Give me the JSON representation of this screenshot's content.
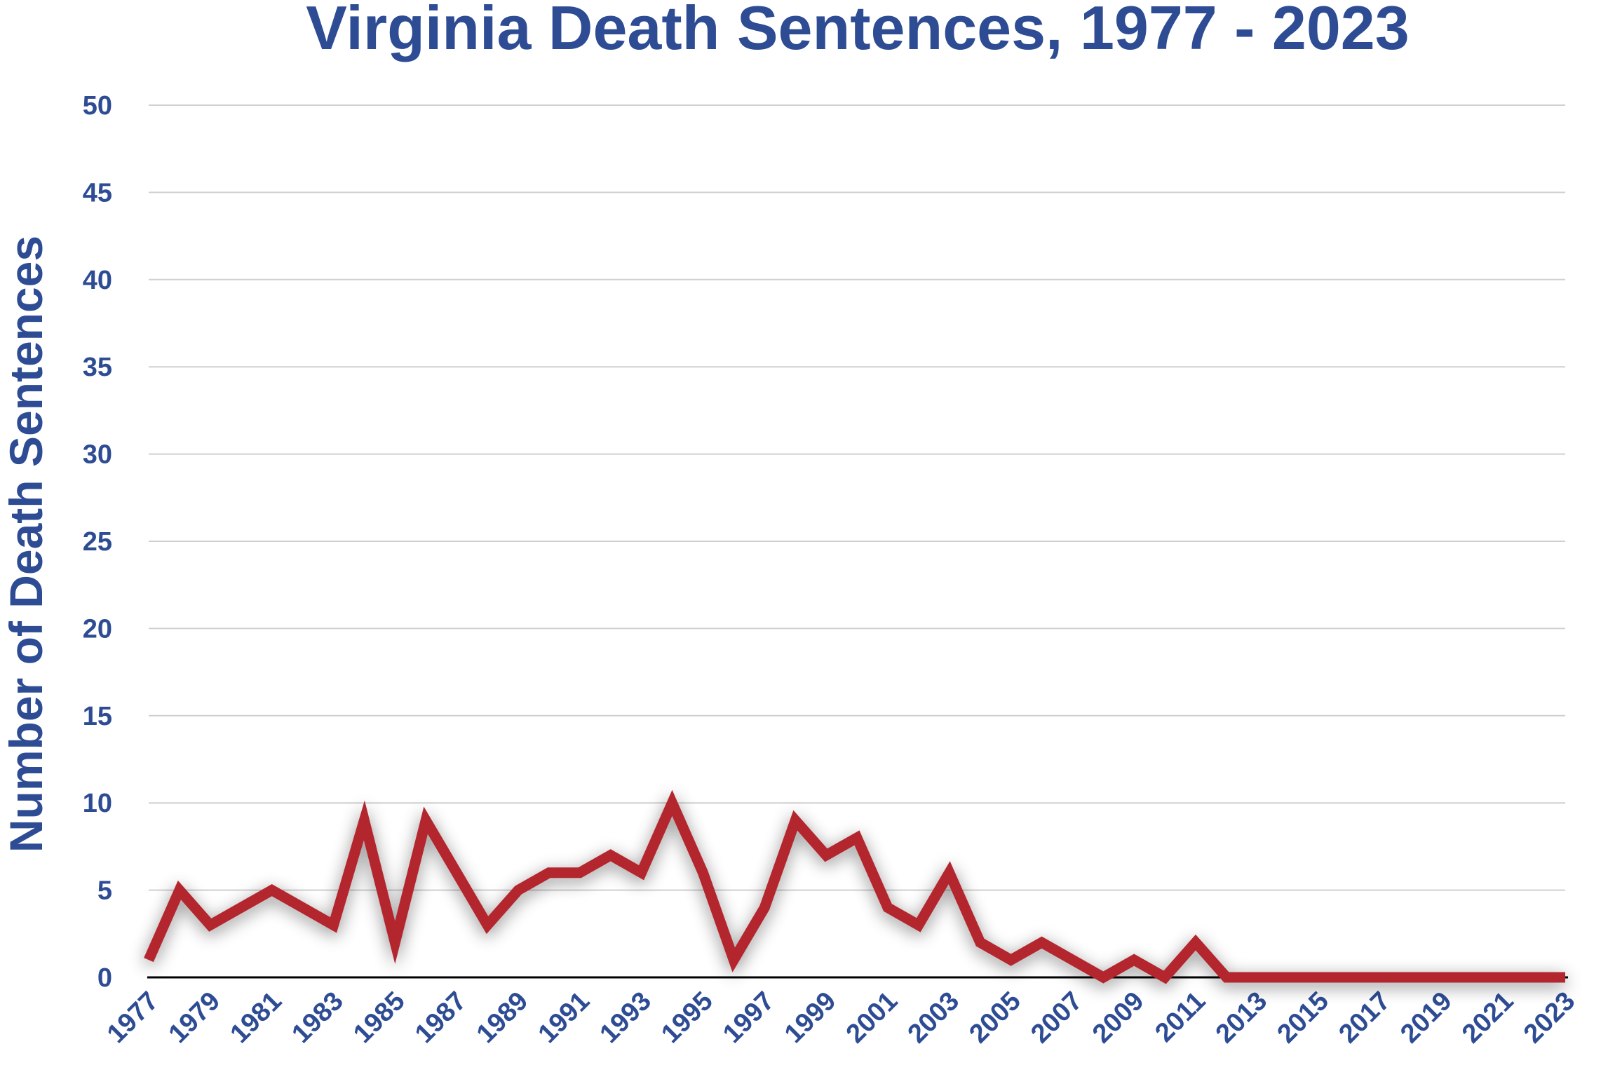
{
  "chart_data": {
    "type": "line",
    "title": "Virginia Death Sentences, 1977 - 2023",
    "xlabel": "",
    "ylabel": "Number of Death Sentences",
    "ylim": [
      0,
      50
    ],
    "yticks": [
      "0",
      "5",
      "10",
      "15",
      "20",
      "25",
      "30",
      "35",
      "40",
      "45",
      "50"
    ],
    "xticks": [
      "1977",
      "1979",
      "1981",
      "1983",
      "1985",
      "1987",
      "1989",
      "1991",
      "1993",
      "1995",
      "1997",
      "1999",
      "2001",
      "2003",
      "2005",
      "2007",
      "2009",
      "2011",
      "2013",
      "2015",
      "2017",
      "2019",
      "2021",
      "2023"
    ],
    "grid": true,
    "legend": "none",
    "x": [
      1977,
      1978,
      1979,
      1980,
      1981,
      1982,
      1983,
      1984,
      1985,
      1986,
      1987,
      1988,
      1989,
      1990,
      1991,
      1992,
      1993,
      1994,
      1995,
      1996,
      1997,
      1998,
      1999,
      2000,
      2001,
      2002,
      2003,
      2004,
      2005,
      2006,
      2007,
      2008,
      2009,
      2010,
      2011,
      2012,
      2013,
      2014,
      2015,
      2016,
      2017,
      2018,
      2019,
      2020,
      2021,
      2022,
      2023
    ],
    "series": [
      {
        "values": [
          1,
          5,
          3,
          4,
          5,
          4,
          3,
          9,
          2,
          9,
          6,
          3,
          5,
          6,
          6,
          7,
          6,
          10,
          6,
          1,
          4,
          9,
          7,
          8,
          4,
          3,
          6,
          2,
          1,
          2,
          1,
          0,
          1,
          0,
          2,
          0,
          0,
          0,
          0,
          0,
          0,
          0,
          0,
          0,
          0,
          0,
          0
        ]
      }
    ],
    "colors": {
      "text": "#2E4C94",
      "line": "#B3262F",
      "grid": "#D0D0D0",
      "axis": "#000000"
    }
  }
}
